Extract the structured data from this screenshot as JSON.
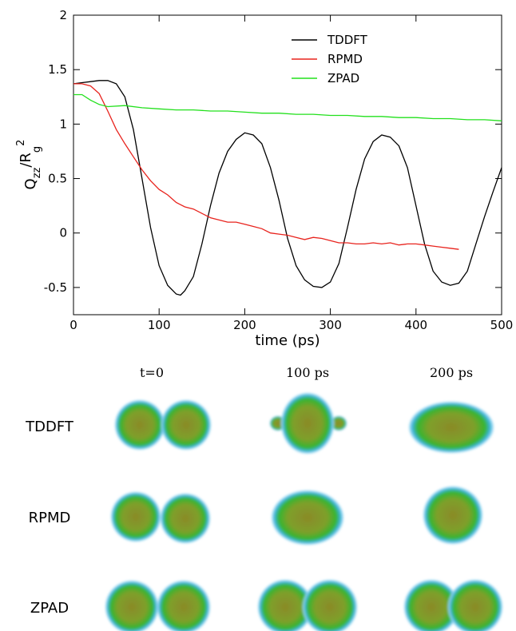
{
  "chart_data": {
    "type": "line",
    "x_label": "time (ps)",
    "y_label_parts": [
      "Q",
      "zz",
      "/R",
      "g",
      "2"
    ],
    "xlim": [
      0,
      500
    ],
    "xticks": [
      0,
      100,
      200,
      300,
      400,
      500
    ],
    "ylim": [
      -0.75,
      2
    ],
    "yticks": [
      -0.5,
      0,
      0.5,
      1,
      1.5,
      2
    ],
    "legend": "upper right",
    "series": [
      {
        "name": "TDDFT",
        "color": "#000000",
        "x": [
          0,
          10,
          20,
          30,
          40,
          50,
          60,
          70,
          80,
          90,
          100,
          110,
          120,
          125,
          130,
          140,
          150,
          160,
          170,
          180,
          190,
          200,
          210,
          220,
          230,
          240,
          250,
          260,
          270,
          280,
          290,
          300,
          310,
          320,
          330,
          340,
          350,
          360,
          370,
          380,
          390,
          400,
          410,
          420,
          430,
          440,
          450,
          460,
          470,
          480,
          490,
          500
        ],
        "values": [
          1.37,
          1.38,
          1.39,
          1.4,
          1.4,
          1.37,
          1.25,
          0.95,
          0.5,
          0.05,
          -0.3,
          -0.48,
          -0.56,
          -0.57,
          -0.53,
          -0.4,
          -0.1,
          0.25,
          0.55,
          0.75,
          0.86,
          0.92,
          0.9,
          0.82,
          0.6,
          0.3,
          -0.05,
          -0.3,
          -0.43,
          -0.49,
          -0.5,
          -0.45,
          -0.28,
          0.05,
          0.4,
          0.68,
          0.84,
          0.9,
          0.88,
          0.8,
          0.6,
          0.25,
          -0.1,
          -0.35,
          -0.45,
          -0.48,
          -0.46,
          -0.35,
          -0.1,
          0.15,
          0.38,
          0.6
        ]
      },
      {
        "name": "RPMD",
        "color": "#e8231d",
        "x": [
          0,
          10,
          20,
          30,
          40,
          50,
          60,
          70,
          80,
          90,
          100,
          110,
          120,
          130,
          140,
          150,
          160,
          170,
          180,
          190,
          200,
          210,
          220,
          230,
          240,
          250,
          260,
          270,
          280,
          290,
          300,
          310,
          320,
          330,
          340,
          350,
          360,
          370,
          380,
          390,
          400,
          410,
          420,
          430,
          440,
          450
        ],
        "values": [
          1.37,
          1.37,
          1.35,
          1.28,
          1.12,
          0.95,
          0.82,
          0.7,
          0.58,
          0.48,
          0.4,
          0.35,
          0.28,
          0.24,
          0.22,
          0.18,
          0.14,
          0.12,
          0.1,
          0.1,
          0.08,
          0.06,
          0.04,
          0.0,
          -0.01,
          -0.02,
          -0.04,
          -0.06,
          -0.04,
          -0.05,
          -0.07,
          -0.09,
          -0.09,
          -0.1,
          -0.1,
          -0.09,
          -0.1,
          -0.09,
          -0.11,
          -0.1,
          -0.1,
          -0.11,
          -0.12,
          -0.13,
          -0.14,
          -0.15
        ]
      },
      {
        "name": "ZPAD",
        "color": "#22e01c",
        "x": [
          0,
          10,
          20,
          30,
          40,
          60,
          80,
          100,
          120,
          140,
          160,
          180,
          200,
          220,
          240,
          260,
          280,
          300,
          320,
          340,
          360,
          380,
          400,
          420,
          440,
          460,
          480,
          500
        ],
        "values": [
          1.27,
          1.27,
          1.22,
          1.18,
          1.16,
          1.17,
          1.15,
          1.14,
          1.13,
          1.13,
          1.12,
          1.12,
          1.11,
          1.1,
          1.1,
          1.09,
          1.09,
          1.08,
          1.08,
          1.07,
          1.07,
          1.06,
          1.06,
          1.05,
          1.05,
          1.04,
          1.04,
          1.03
        ]
      }
    ]
  },
  "snapshots": {
    "columns": [
      "t=0",
      "100 ps",
      "200 ps"
    ],
    "rows": [
      "TDDFT",
      "RPMD",
      "ZPAD"
    ]
  }
}
